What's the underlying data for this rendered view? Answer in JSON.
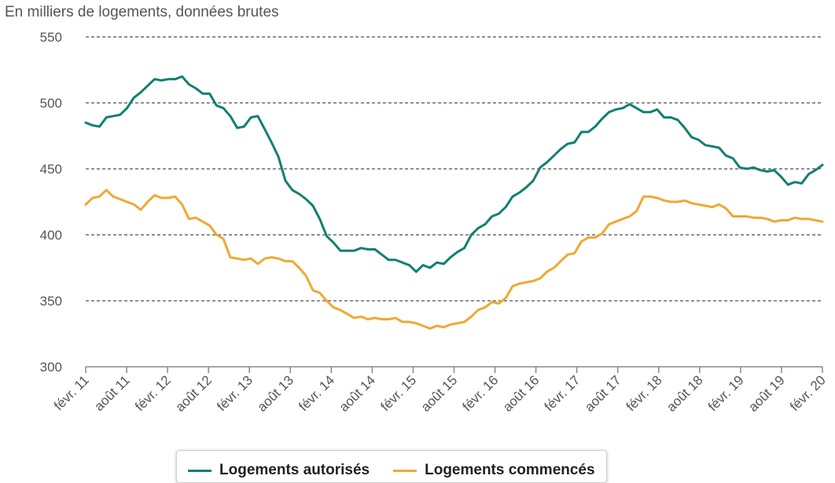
{
  "chart_data": {
    "type": "line",
    "subtitle": "En milliers de logements, données brutes",
    "ylim": [
      300,
      550
    ],
    "yticks": [
      300,
      350,
      400,
      450,
      500,
      550
    ],
    "grid": true,
    "x_tick_labels": [
      "févr. 11",
      "août 11",
      "févr. 12",
      "août 12",
      "févr. 13",
      "août 13",
      "févr. 14",
      "août 14",
      "févr. 15",
      "août 15",
      "févr. 16",
      "août 16",
      "févr. 17",
      "août 17",
      "févr. 18",
      "août 18",
      "févr. 19",
      "août 19",
      "févr. 20"
    ],
    "legend_position": "bottom",
    "series": [
      {
        "name": "Logements autorisés",
        "color": "#137f73",
        "values": [
          485,
          483,
          482,
          489,
          490,
          491,
          496,
          504,
          508,
          513,
          518,
          517,
          518,
          518,
          520,
          514,
          511,
          507,
          507,
          498,
          496,
          490,
          481,
          482,
          489,
          490,
          480,
          470,
          459,
          441,
          434,
          431,
          427,
          422,
          412,
          399,
          394,
          388,
          388,
          388,
          390,
          389,
          389,
          385,
          381,
          381,
          379,
          377,
          372,
          377,
          375,
          379,
          378,
          383,
          387,
          390,
          400,
          405,
          408,
          414,
          416,
          421,
          429,
          432,
          436,
          441,
          451,
          455,
          460,
          465,
          469,
          470,
          478,
          478,
          482,
          488,
          493,
          495,
          496,
          499,
          496,
          493,
          493,
          495,
          489,
          489,
          487,
          481,
          474,
          472,
          468,
          467,
          466,
          460,
          458,
          451,
          450,
          451,
          449,
          448,
          449,
          444,
          438,
          440,
          439,
          446,
          449,
          453
        ]
      },
      {
        "name": "Logements commencés",
        "color": "#f0a834",
        "values": [
          423,
          428,
          429,
          434,
          429,
          427,
          425,
          423,
          419,
          425,
          430,
          428,
          428,
          429,
          423,
          412,
          413,
          410,
          407,
          400,
          397,
          383,
          382,
          381,
          382,
          378,
          382,
          383,
          382,
          380,
          380,
          375,
          369,
          358,
          356,
          350,
          345,
          343,
          340,
          337,
          338,
          336,
          337,
          336,
          336,
          337,
          334,
          334,
          333,
          331,
          329,
          331,
          330,
          332,
          333,
          334,
          338,
          343,
          345,
          349,
          348,
          352,
          361,
          363,
          364,
          365,
          367,
          372,
          375,
          380,
          385,
          386,
          395,
          398,
          398,
          401,
          408,
          410,
          412,
          414,
          418,
          429,
          429,
          428,
          426,
          425,
          425,
          426,
          424,
          423,
          422,
          421,
          423,
          420,
          414,
          414,
          414,
          413,
          413,
          412,
          410,
          411,
          411,
          413,
          412,
          412,
          411,
          410
        ]
      }
    ]
  }
}
